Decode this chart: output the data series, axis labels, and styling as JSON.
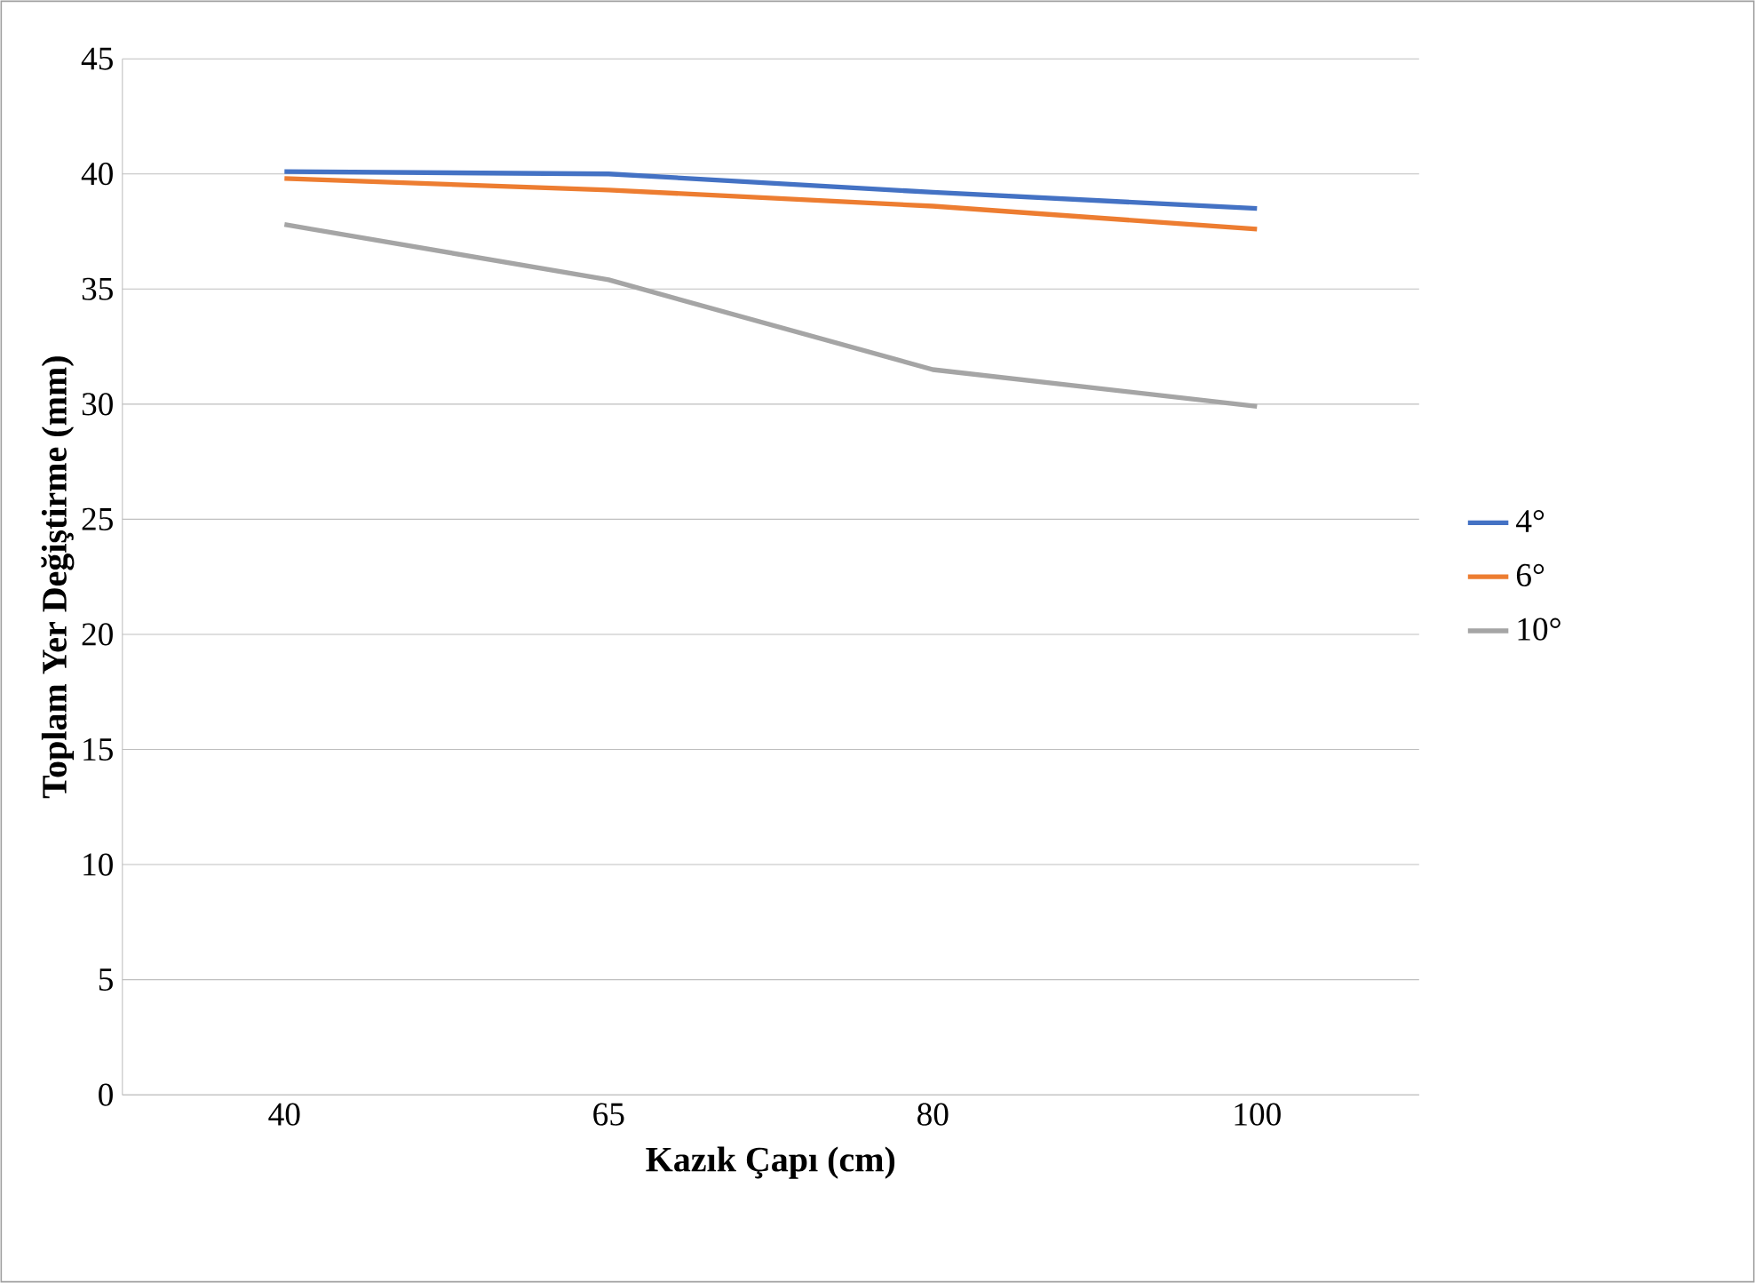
{
  "chart_data": {
    "type": "line",
    "xlabel": "Kazık Çapı (cm)",
    "ylabel": "Toplam Yer Değiştirme (mm)",
    "categories": [
      "40",
      "65",
      "80",
      "100"
    ],
    "series": [
      {
        "name": "4°",
        "color": "#4472c4",
        "values": [
          40.1,
          40.0,
          39.2,
          38.5
        ]
      },
      {
        "name": "6°",
        "color": "#ed7d31",
        "values": [
          39.8,
          39.3,
          38.6,
          37.6
        ]
      },
      {
        "name": "10°",
        "color": "#a5a5a5",
        "values": [
          37.8,
          35.4,
          31.5,
          29.9
        ]
      }
    ],
    "ylim": [
      0,
      45
    ],
    "yticks": [
      0,
      5,
      10,
      15,
      20,
      25,
      30,
      35,
      40,
      45
    ],
    "grid": "y",
    "legend": "right",
    "marker": "none",
    "line_style": "solid"
  }
}
